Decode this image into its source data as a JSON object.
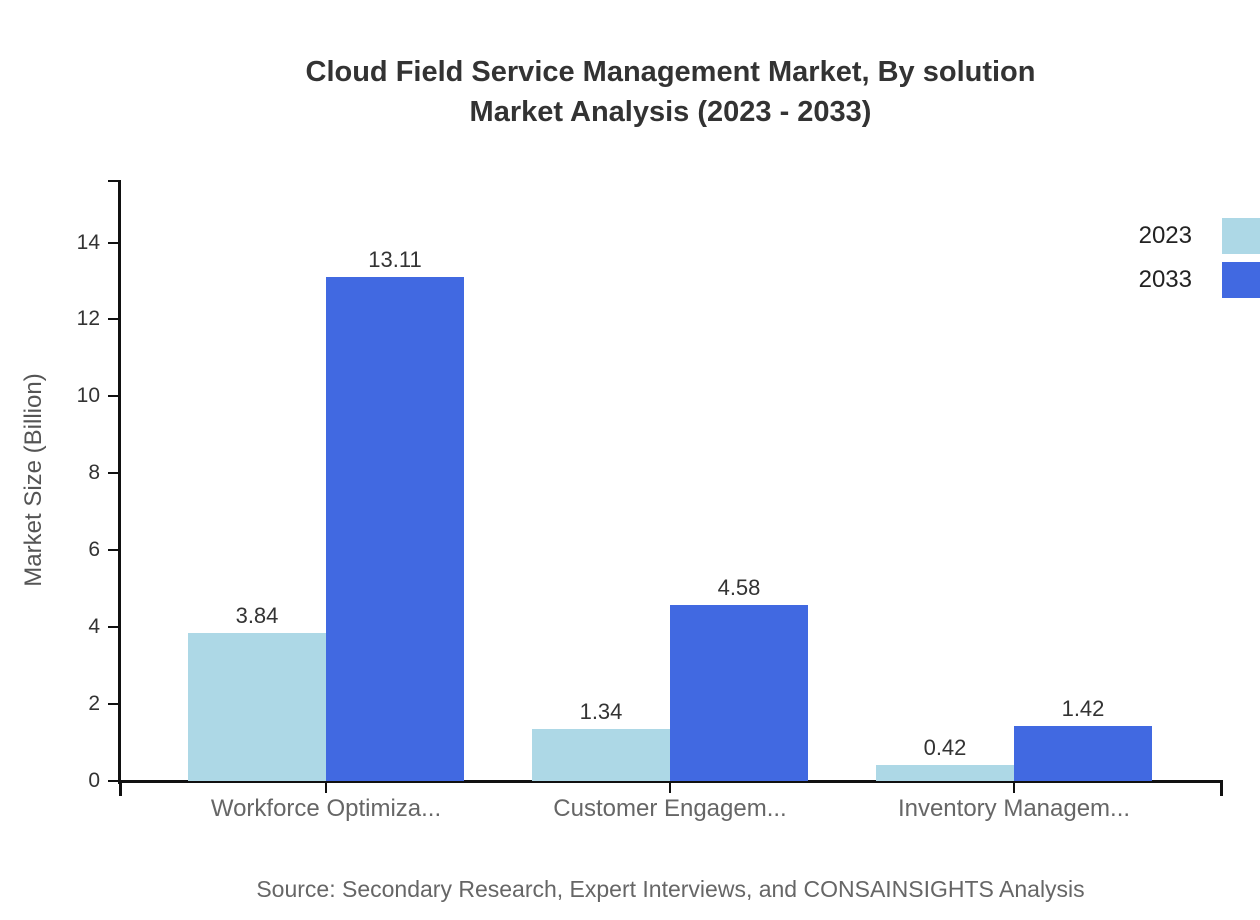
{
  "chart": {
    "title_line1": "Cloud Field Service Management Market, By solution",
    "title_line2": "Market Analysis (2023 - 2033)",
    "source_note": "Source: Secondary Research, Expert Interviews, and CONSAINSIGHTS Analysis"
  },
  "chart_data": {
    "type": "bar",
    "title": "Cloud Field Service Management Market, By solution Market Analysis (2023 - 2033)",
    "xlabel": "",
    "ylabel": "Market Size (Billion)",
    "categories": [
      "Workforce Optimiza...",
      "Customer Engagem...",
      "Inventory Managem..."
    ],
    "series": [
      {
        "name": "2023",
        "color": "#ADD8E6",
        "values": [
          3.84,
          1.34,
          0.42
        ]
      },
      {
        "name": "2033",
        "color": "#4169E1",
        "values": [
          13.11,
          4.58,
          1.42
        ]
      }
    ],
    "yticks": [
      0,
      2,
      4,
      6,
      8,
      10,
      12,
      14
    ],
    "ylim": [
      0,
      15.6
    ],
    "grid": false,
    "legend_position": "top-right",
    "value_labels": "2dp"
  },
  "colors": {
    "background": "#ffffff",
    "title_text": "#333333",
    "axis": "#111111",
    "tick_label": "#333333",
    "category_label": "#666666",
    "value_label": "#333333",
    "legend_label": "#222222",
    "source_text": "#666666",
    "series_2023": "#ADD8E6",
    "series_2033": "#4169E1"
  }
}
